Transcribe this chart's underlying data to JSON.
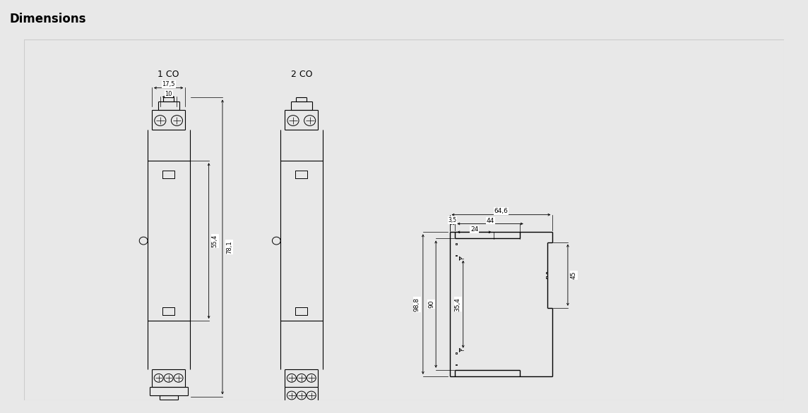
{
  "title": "Dimensions",
  "title_fontsize": 12,
  "background_color": "#e8e8e8",
  "drawing_background": "#ffffff",
  "line_color": "#000000",
  "label_1co": "1 CO",
  "label_2co": "2 CO",
  "dim_17_5": "17,5",
  "dim_10": "10",
  "dim_55_4": "55,4",
  "dim_78_1": "78,1",
  "dim_64_6": "64,6",
  "dim_44": "44",
  "dim_24": "24",
  "dim_3_5": "3,5",
  "dim_98_8": "98,8",
  "dim_90": "90",
  "dim_35_4": "35,4",
  "dim_45": "45"
}
